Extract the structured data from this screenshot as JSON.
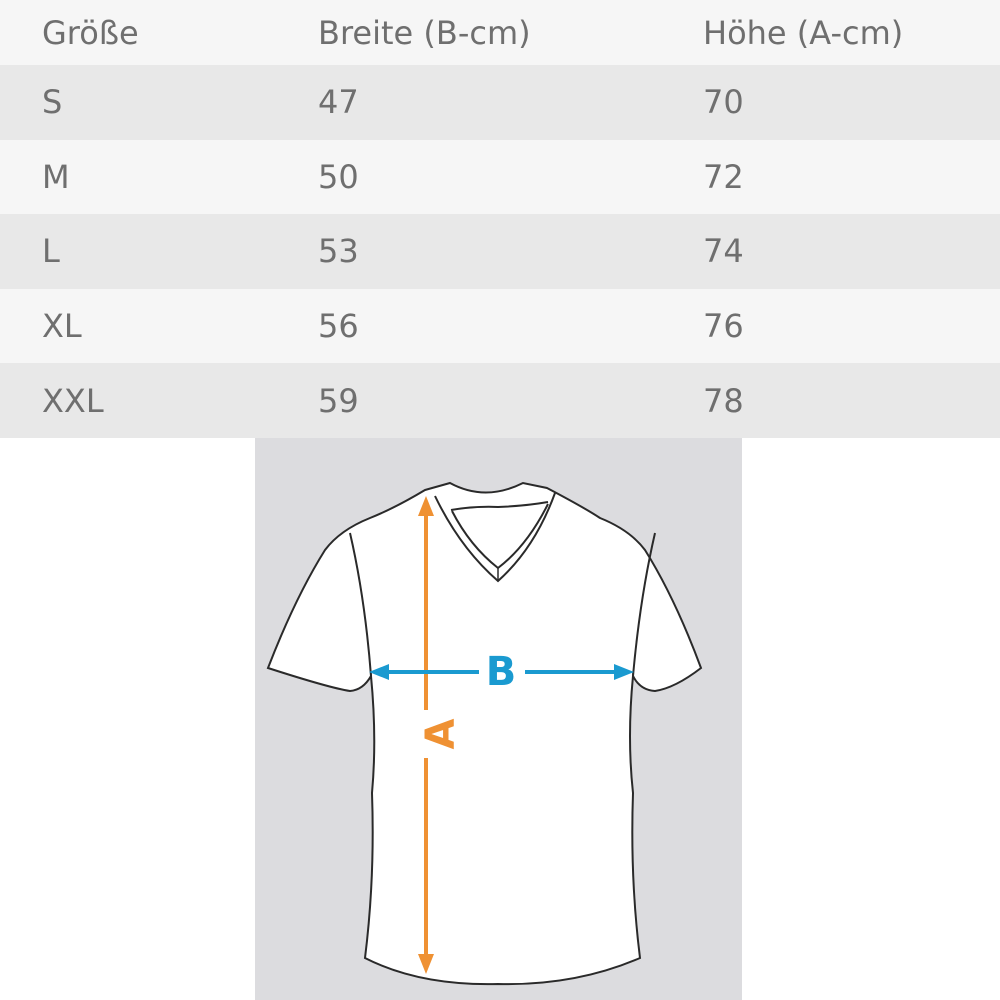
{
  "size_table": {
    "headers": [
      "Größe",
      "Breite (B-cm)",
      "Höhe (A-cm)"
    ],
    "rows": [
      [
        "S",
        "47",
        "70"
      ],
      [
        "M",
        "50",
        "72"
      ],
      [
        "L",
        "53",
        "74"
      ],
      [
        "XL",
        "56",
        "76"
      ],
      [
        "XXL",
        "59",
        "78"
      ]
    ]
  },
  "diagram": {
    "width_label": "B",
    "height_label": "A",
    "colors": {
      "width_arrow": "#1a9ad0",
      "height_arrow": "#ef9133",
      "background": "#dcdcdf"
    }
  }
}
